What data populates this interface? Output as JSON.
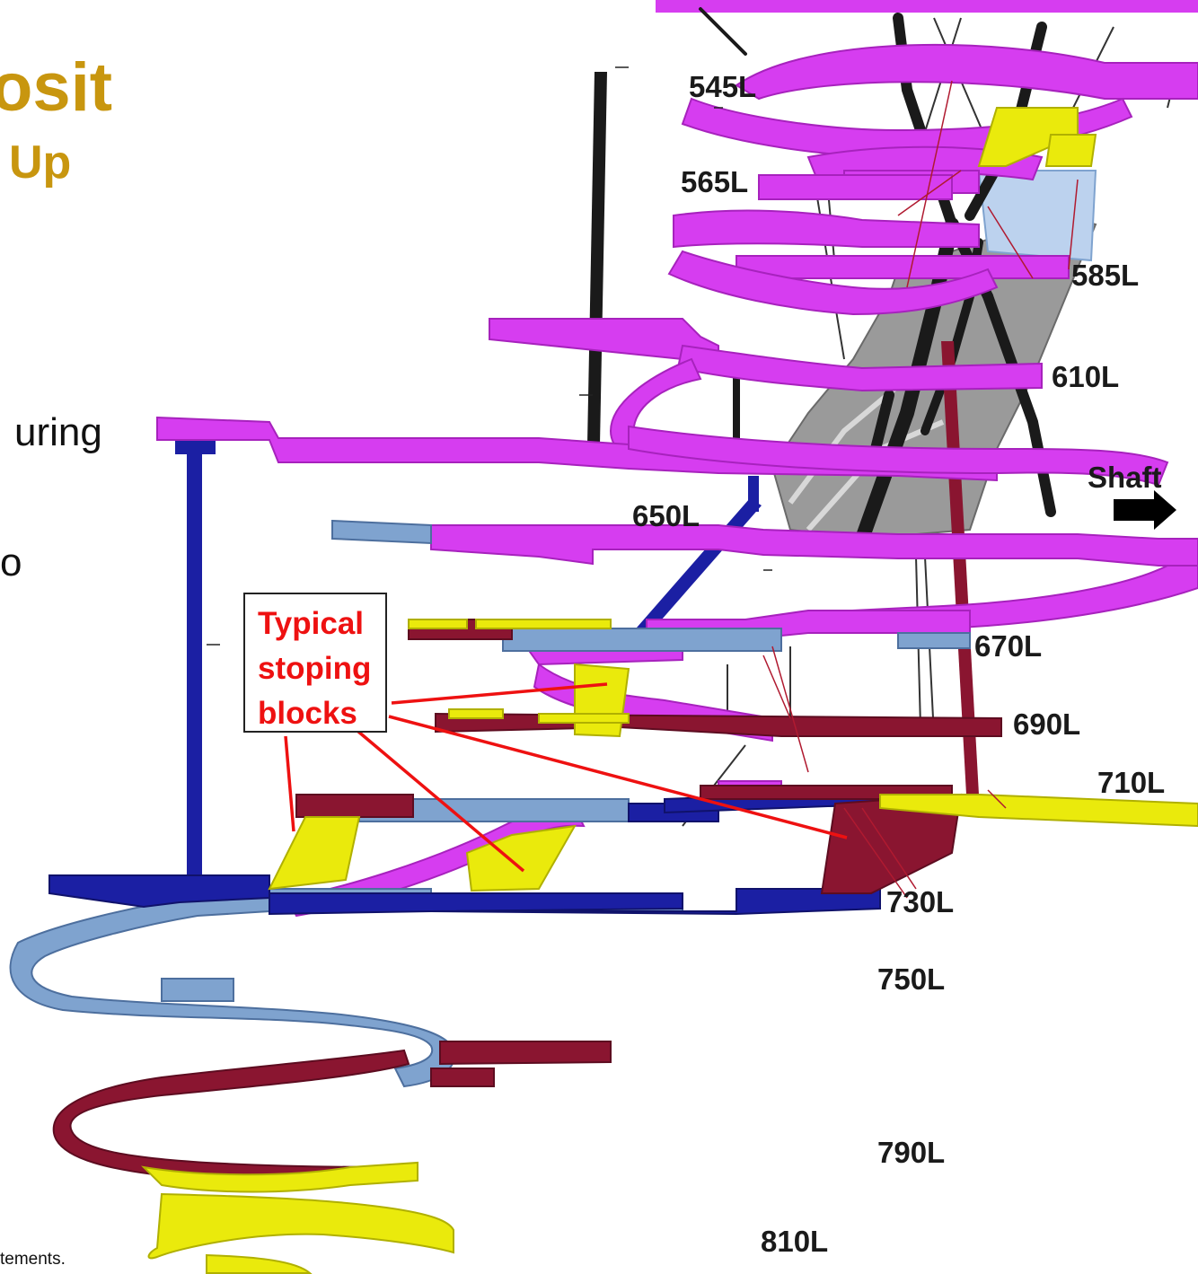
{
  "title": {
    "line1": "osit",
    "line2": "Up"
  },
  "fragments": {
    "frag1": "uring",
    "frag2": "o"
  },
  "footnote": "tements.",
  "levels": {
    "l545": "545L",
    "l565": "565L",
    "l585": "585L",
    "l610": "610L",
    "l650": "650L",
    "l670": "670L",
    "l690": "690L",
    "l710": "710L",
    "l730": "730L",
    "l750": "750L",
    "l790": "790L",
    "l810": "810L"
  },
  "shaft_label": "Shaft",
  "callout": {
    "line1": "Typical",
    "line2": "stoping",
    "line3": "blocks"
  },
  "colors": {
    "magenta": "#d63df0",
    "darkblue": "#1b1fa3",
    "lightblue": "#7fa3cf",
    "maroon": "#8a1530",
    "yellow": "#eaea0c",
    "gray": "#8c8c8c",
    "black": "#1a1a1a",
    "title": "#c8960f",
    "callout_text": "#ee1111",
    "leader": "#ee1111"
  },
  "icons": {
    "shaft_arrow": "right-arrow-icon"
  }
}
